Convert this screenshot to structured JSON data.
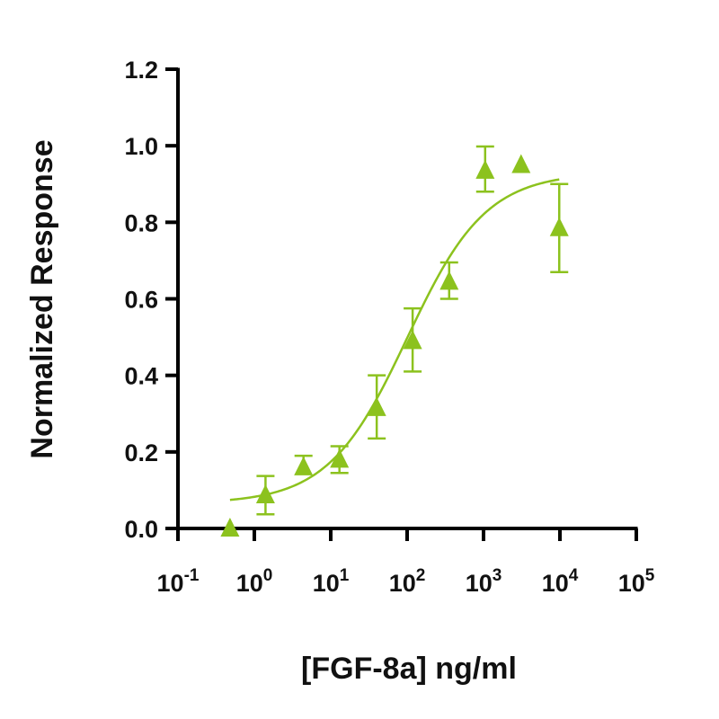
{
  "chart_data": {
    "type": "scatter",
    "title": "",
    "xlabel": "[FGF-8a] ng/ml",
    "ylabel": "Normalized Response",
    "xscale": "log10",
    "xlim": [
      0.1,
      100000
    ],
    "ylim": [
      0,
      1.2
    ],
    "x_tick_exponents": [
      "-1",
      "0",
      "1",
      "2",
      "3",
      "4",
      "5"
    ],
    "x_tick_base": "10",
    "y_ticks": [
      "0.0",
      "0.2",
      "0.4",
      "0.6",
      "0.8",
      "1.0",
      "1.2"
    ],
    "grid": false,
    "color": "#8cc21e",
    "series": [
      {
        "name": "FGF-8a",
        "marker": "triangle",
        "x": [
          0.48,
          1.4,
          4.4,
          13,
          40,
          118,
          355,
          1050,
          3100,
          9800
        ],
        "y": [
          0.0,
          0.087,
          0.16,
          0.18,
          0.315,
          0.49,
          0.645,
          0.935,
          0.95,
          0.785
        ],
        "err_plus": [
          0,
          0.05,
          0.03,
          0.035,
          0.085,
          0.085,
          0.05,
          0.063,
          0,
          0.115
        ],
        "err_minus": [
          0,
          0.05,
          0.0,
          0.035,
          0.08,
          0.08,
          0.045,
          0.055,
          0,
          0.115
        ]
      }
    ],
    "fit": {
      "model": "4PL",
      "bottom": 0.065,
      "top": 0.93,
      "ec50": 100,
      "hill": 0.84,
      "x_range": [
        0.48,
        9800
      ]
    }
  }
}
